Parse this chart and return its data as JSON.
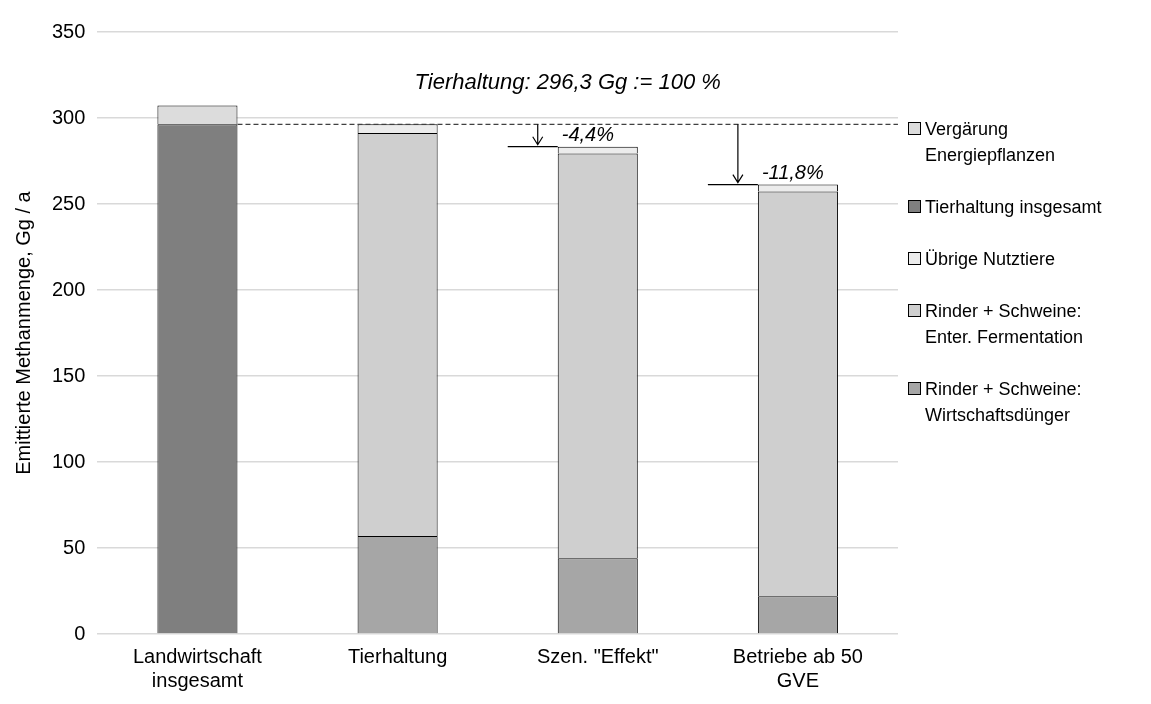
{
  "chart_data": {
    "type": "bar",
    "stacked": true,
    "ylabel": "Emittierte Methanmenge, Gg / a",
    "categories": [
      "Landwirtschaft insgesamt",
      "Tierhaltung",
      "Szen. \"Effekt\"",
      "Betriebe ab 50 GVE"
    ],
    "series": [
      {
        "name": "Rinder + Schweine: Wirtschaftsdünger",
        "color": "#a6a6a6",
        "values": [
          null,
          57,
          44,
          22
        ]
      },
      {
        "name": "Rinder + Schweine: Enter. Fermentation",
        "color": "#cfcfcf",
        "values": [
          null,
          234.3,
          235.3,
          235.3
        ]
      },
      {
        "name": "Übrige Nutztiere",
        "color": "#ececec",
        "values": [
          null,
          5,
          4,
          4
        ]
      },
      {
        "name": "Tierhaltung insgesamt",
        "color": "#7f7f7f",
        "values": [
          296.3,
          null,
          null,
          null
        ]
      },
      {
        "name": "Vergärung Energiepflanzen",
        "color": "#dcdcdc",
        "values": [
          11,
          null,
          null,
          null
        ]
      }
    ],
    "ylim": [
      0,
      350
    ],
    "yticks": [
      0,
      50,
      100,
      150,
      200,
      250,
      300,
      350
    ],
    "grid": "y",
    "legend": "right",
    "ref_lines": [
      {
        "axis": "y",
        "value": 296.3,
        "label": "Tierhaltung: 296,3 Gg := 100 %",
        "color": "#404040",
        "line_style": "dashed"
      }
    ],
    "annotations": [
      {
        "text": "-4,4%",
        "x": "Szen. \"Effekt\"",
        "y": 283.3
      },
      {
        "text": "-11,8%",
        "x": "Betriebe ab 50 GVE",
        "y": 261.3
      }
    ]
  }
}
